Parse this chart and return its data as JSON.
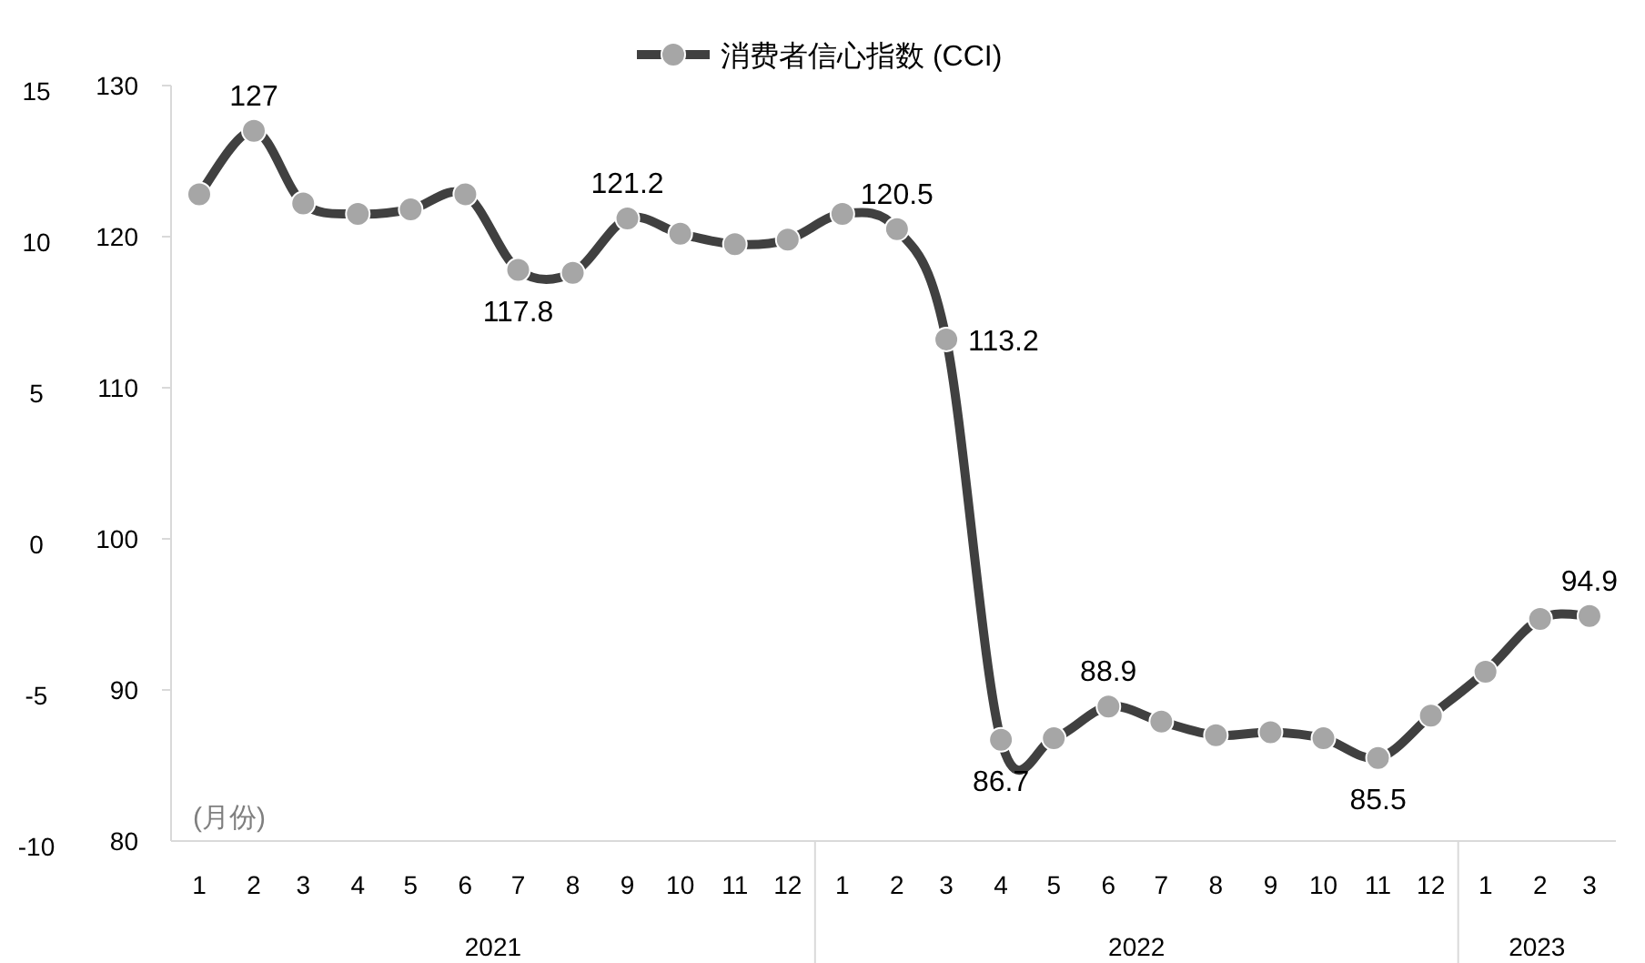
{
  "chart_data": {
    "type": "line",
    "legend": "top",
    "marker": "circle",
    "line_style": "solid",
    "grid": false,
    "x": [
      "2021-01",
      "2021-02",
      "2021-03",
      "2021-04",
      "2021-05",
      "2021-06",
      "2021-07",
      "2021-08",
      "2021-09",
      "2021-10",
      "2021-11",
      "2021-12",
      "2022-01",
      "2022-02",
      "2022-03",
      "2022-04",
      "2022-05",
      "2022-06",
      "2022-07",
      "2022-08",
      "2022-09",
      "2022-10",
      "2022-11",
      "2022-12",
      "2023-01",
      "2023-02",
      "2023-03"
    ],
    "xlim": [
      "2020-12-16",
      "2023-03-16"
    ],
    "xticks": [
      {
        "value": "2021-01",
        "label": "1"
      },
      {
        "value": "2021-02",
        "label": "2"
      },
      {
        "value": "2021-03",
        "label": "3"
      },
      {
        "value": "2021-04",
        "label": "4"
      },
      {
        "value": "2021-05",
        "label": "5"
      },
      {
        "value": "2021-06",
        "label": "6"
      },
      {
        "value": "2021-07",
        "label": "7"
      },
      {
        "value": "2021-08",
        "label": "8"
      },
      {
        "value": "2021-09",
        "label": "9"
      },
      {
        "value": "2021-10",
        "label": "10"
      },
      {
        "value": "2021-11",
        "label": "11"
      },
      {
        "value": "2021-12",
        "label": "12"
      },
      {
        "value": "2022-01",
        "label": "1"
      },
      {
        "value": "2022-02",
        "label": "2"
      },
      {
        "value": "2022-03",
        "label": "3"
      },
      {
        "value": "2022-04",
        "label": "4"
      },
      {
        "value": "2022-05",
        "label": "5"
      },
      {
        "value": "2022-06",
        "label": "6"
      },
      {
        "value": "2022-07",
        "label": "7"
      },
      {
        "value": "2022-08",
        "label": "8"
      },
      {
        "value": "2022-09",
        "label": "9"
      },
      {
        "value": "2022-10",
        "label": "10"
      },
      {
        "value": "2022-11",
        "label": "11"
      },
      {
        "value": "2022-12",
        "label": "12"
      },
      {
        "value": "2023-01",
        "label": "1"
      },
      {
        "value": "2023-02",
        "label": "2"
      },
      {
        "value": "2023-03",
        "label": "3"
      }
    ],
    "series": [
      {
        "name": "消费者信心指数 (CCI)",
        "color": "#404040",
        "values": [
          122.8,
          127,
          122.2,
          121.5,
          121.8,
          122.8,
          117.8,
          117.6,
          121.2,
          120.2,
          119.5,
          119.8,
          121.5,
          120.5,
          113.2,
          86.7,
          86.8,
          88.9,
          87.9,
          87.0,
          87.2,
          86.8,
          85.5,
          88.3,
          91.2,
          94.7,
          94.9
        ],
        "value_labels": [
          null,
          "127",
          null,
          null,
          null,
          null,
          "117.8",
          null,
          "121.2",
          null,
          null,
          null,
          null,
          "120.5",
          "113.2",
          "86.7",
          null,
          "88.9",
          null,
          null,
          null,
          null,
          "85.5",
          null,
          null,
          null,
          "94.9"
        ]
      }
    ],
    "ylim": [
      80,
      130
    ],
    "yticks": [
      80,
      90,
      100,
      110,
      120,
      130
    ],
    "y2lim": [
      -10,
      15
    ],
    "y2ticks": [
      -10,
      -5,
      0,
      5,
      10,
      15
    ],
    "annotations": [
      "(月份)",
      "2021",
      "2022",
      "2023"
    ]
  }
}
